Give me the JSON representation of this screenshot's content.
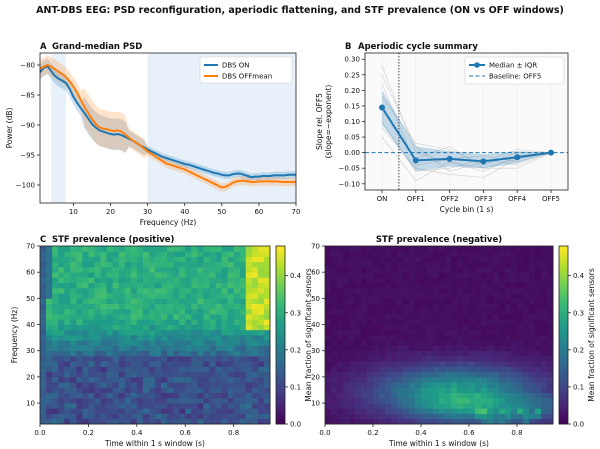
{
  "suptitle": "ANT-DBS EEG: PSD reconfiguration, aperiodic flattening, and STF prevalence (ON vs OFF windows)",
  "chart_data": [
    {
      "type": "line",
      "panel_letter": "A",
      "title": "Grand-median PSD",
      "xlabel": "Frequency (Hz)",
      "ylabel": "Power (dB)",
      "xlim": [
        1,
        70
      ],
      "ylim": [
        -103,
        -78
      ],
      "xticks": [
        "10",
        "20",
        "30",
        "40",
        "50",
        "60",
        "70"
      ],
      "yticks": [
        "-80",
        "-85",
        "-90",
        "-95",
        "-100"
      ],
      "shaded_bands": [
        [
          4,
          8
        ],
        [
          30,
          70
        ]
      ],
      "legend": "top-right",
      "x": [
        1,
        2,
        3,
        4,
        5,
        6,
        7,
        8,
        9,
        10,
        11,
        12,
        13,
        14,
        15,
        16,
        17,
        18,
        19,
        20,
        21,
        22,
        23,
        24,
        25,
        26,
        27,
        28,
        29,
        30,
        31,
        32,
        33,
        34,
        35,
        36,
        37,
        38,
        39,
        40,
        41,
        42,
        43,
        44,
        45,
        46,
        47,
        48,
        49,
        50,
        51,
        52,
        53,
        54,
        55,
        56,
        57,
        58,
        59,
        60,
        61,
        62,
        63,
        64,
        65,
        66,
        67,
        68,
        69,
        70
      ],
      "series": [
        {
          "name": "DBS ON",
          "color": "#1f77b4",
          "values": [
            -81.2,
            -80.5,
            -80.2,
            -81.0,
            -81.8,
            -82.3,
            -82.6,
            -83.0,
            -84.0,
            -85.3,
            -86.3,
            -87.2,
            -88.0,
            -88.9,
            -89.8,
            -90.4,
            -90.9,
            -91.1,
            -91.3,
            -91.5,
            -91.6,
            -91.5,
            -91.7,
            -92.0,
            -92.3,
            -92.6,
            -93.0,
            -93.4,
            -93.7,
            -94.1,
            -94.4,
            -94.7,
            -95.0,
            -95.3,
            -95.5,
            -95.7,
            -95.9,
            -96.1,
            -96.3,
            -96.5,
            -96.6,
            -96.8,
            -97.0,
            -97.2,
            -97.4,
            -97.6,
            -97.8,
            -98.0,
            -98.1,
            -98.3,
            -98.4,
            -98.4,
            -98.2,
            -98.1,
            -98.1,
            -98.3,
            -98.5,
            -98.7,
            -98.6,
            -98.6,
            -98.5,
            -98.5,
            -98.5,
            -98.4,
            -98.4,
            -98.4,
            -98.4,
            -98.3,
            -98.3,
            -98.3
          ]
        },
        {
          "name": "DBS OFFmean",
          "color": "#ff7f0e",
          "values": [
            -80.6,
            -80.3,
            -80.0,
            -80.3,
            -80.7,
            -81.1,
            -81.5,
            -82.0,
            -82.7,
            -83.6,
            -84.6,
            -85.8,
            -87.0,
            -88.0,
            -89.0,
            -89.8,
            -90.4,
            -90.6,
            -90.7,
            -90.9,
            -91.0,
            -90.9,
            -91.1,
            -91.6,
            -92.1,
            -92.6,
            -93.0,
            -93.4,
            -93.9,
            -94.4,
            -94.8,
            -95.2,
            -95.6,
            -96.0,
            -96.4,
            -96.6,
            -96.8,
            -97.0,
            -97.2,
            -97.4,
            -97.7,
            -98.0,
            -98.3,
            -98.6,
            -98.9,
            -99.2,
            -99.5,
            -99.8,
            -100.1,
            -100.4,
            -100.3,
            -100.0,
            -99.6,
            -99.4,
            -99.3,
            -99.3,
            -99.4,
            -99.5,
            -99.5,
            -99.4,
            -99.4,
            -99.4,
            -99.4,
            -99.4,
            -99.4,
            -99.5,
            -99.5,
            -99.5,
            -99.5,
            -99.5
          ]
        }
      ]
    },
    {
      "type": "line",
      "panel_letter": "B",
      "title": "Aperiodic cycle summary",
      "xlabel": "Cycle bin (1 s)",
      "ylabel": "Slope rel. OFF5\n(slope=−exponent)",
      "categories": [
        "ON",
        "OFF1",
        "OFF2",
        "OFF3",
        "OFF4",
        "OFF5"
      ],
      "ylim": [
        -0.12,
        0.32
      ],
      "yticks": [
        "0.30",
        "0.25",
        "0.20",
        "0.15",
        "0.10",
        "0.05",
        "0.00",
        "−0.05",
        "−0.10"
      ],
      "legend": "top-right",
      "series": [
        {
          "name": "Median ± IQR",
          "color": "#1f77b4",
          "values": [
            0.145,
            -0.025,
            -0.02,
            -0.028,
            -0.015,
            0.0
          ],
          "iqr_low": [
            0.09,
            -0.06,
            -0.045,
            -0.05,
            -0.035,
            0.0
          ],
          "iqr_high": [
            0.2,
            0.02,
            0.005,
            -0.005,
            0.005,
            0.0
          ]
        },
        {
          "name": "Baseline: OFF5",
          "color": "#1f77b4",
          "values": [
            0,
            0,
            0,
            0,
            0,
            0
          ]
        }
      ]
    },
    {
      "type": "heatmap",
      "panel_letter": "C",
      "title": "STF prevalence (positive)",
      "xlabel": "Time within 1 s window (s)",
      "ylabel": "Frequency (Hz)",
      "xlim": [
        0,
        0.95
      ],
      "ylim": [
        2,
        70
      ],
      "xticks": [
        "0.0",
        "0.2",
        "0.4",
        "0.6",
        "0.8"
      ],
      "yticks": [
        "10",
        "20",
        "30",
        "40",
        "50",
        "60",
        "70"
      ],
      "colorbar_label": "Mean fraction of significant sensors",
      "colorbar_ticks": [
        "0.0",
        "0.1",
        "0.2",
        "0.3",
        "0.4"
      ],
      "vmax": 0.48
    },
    {
      "type": "heatmap",
      "title": "STF prevalence (negative)",
      "xlabel": "Time within 1 s window (s)",
      "xlim": [
        0,
        0.95
      ],
      "ylim": [
        2,
        70
      ],
      "xticks": [
        "0.0",
        "0.2",
        "0.4",
        "0.6",
        "0.8"
      ],
      "yticks": [
        "10",
        "20",
        "30",
        "40",
        "50",
        "60",
        "70"
      ],
      "colorbar_label": "Mean fraction of significant sensors",
      "colorbar_ticks": [
        "0.0",
        "0.1",
        "0.2",
        "0.3",
        "0.4"
      ],
      "vmax": 0.48
    }
  ]
}
